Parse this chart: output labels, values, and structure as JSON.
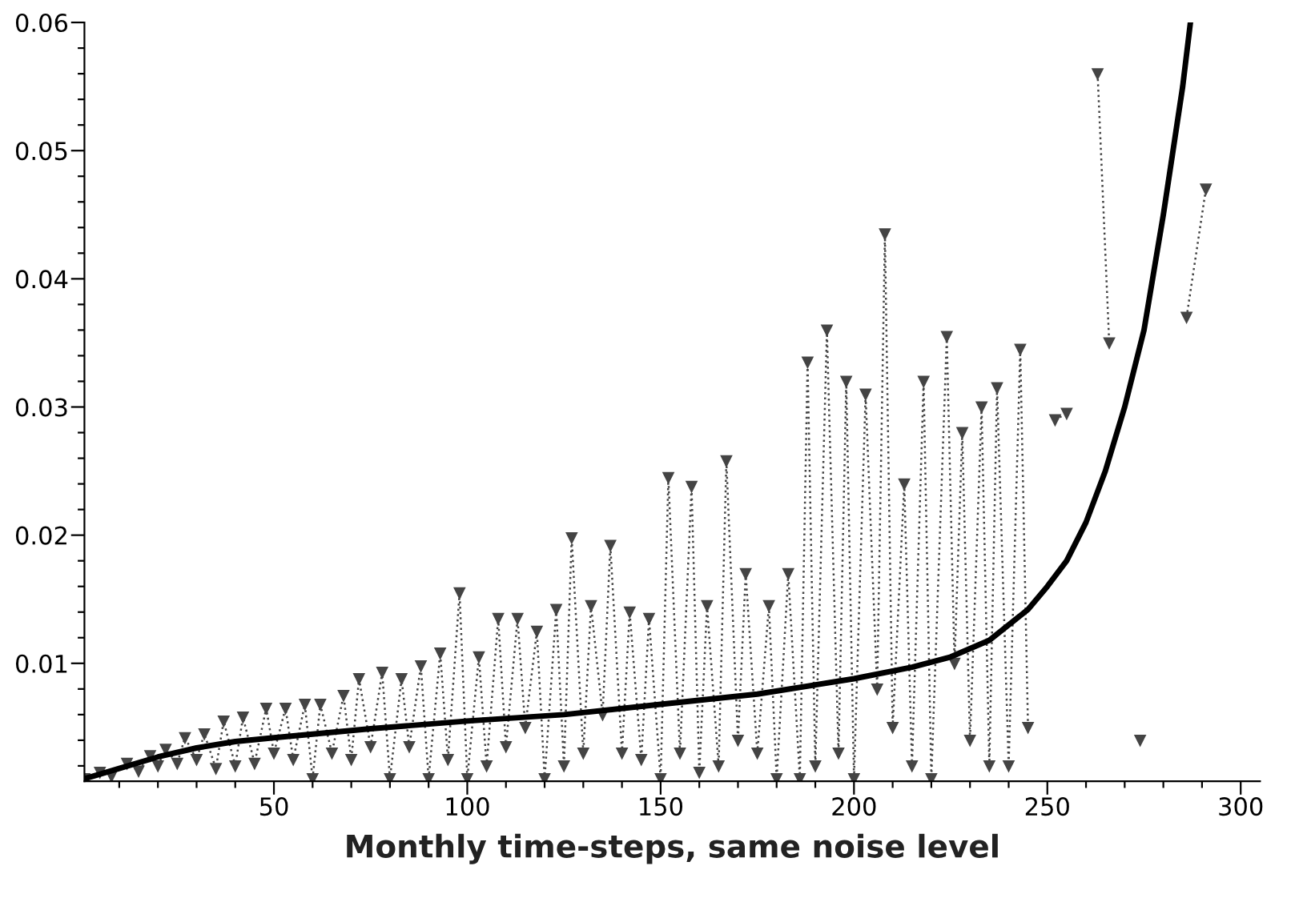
{
  "chart_data": {
    "type": "line",
    "xlabel": "Monthly time-steps, same noise level",
    "xlim": [
      1,
      305
    ],
    "ylim": [
      0.0008,
      0.06
    ],
    "xticks": [
      {
        "value": 10,
        "label": null
      },
      {
        "value": 20,
        "label": null
      },
      {
        "value": 30,
        "label": null
      },
      {
        "value": 40,
        "label": null
      },
      50,
      {
        "value": 60,
        "label": null
      },
      {
        "value": 70,
        "label": null
      },
      {
        "value": 80,
        "label": null
      },
      {
        "value": 90,
        "label": null
      },
      100,
      {
        "value": 110,
        "label": null
      },
      {
        "value": 120,
        "label": null
      },
      {
        "value": 130,
        "label": null
      },
      {
        "value": 140,
        "label": null
      },
      150,
      {
        "value": 160,
        "label": null
      },
      {
        "value": 170,
        "label": null
      },
      {
        "value": 180,
        "label": null
      },
      {
        "value": 190,
        "label": null
      },
      200,
      {
        "value": 210,
        "label": null
      },
      {
        "value": 220,
        "label": null
      },
      {
        "value": 230,
        "label": null
      },
      {
        "value": 240,
        "label": null
      },
      250,
      {
        "value": 260,
        "label": null
      },
      {
        "value": 270,
        "label": null
      },
      {
        "value": 280,
        "label": null
      },
      {
        "value": 290,
        "label": null
      },
      300
    ],
    "yticks": [
      {
        "value": 0.002,
        "label": null
      },
      {
        "value": 0.004,
        "label": null
      },
      {
        "value": 0.006,
        "label": null
      },
      {
        "value": 0.008,
        "label": null
      },
      0.01,
      {
        "value": 0.012,
        "label": null
      },
      {
        "value": 0.014,
        "label": null
      },
      {
        "value": 0.016,
        "label": null
      },
      {
        "value": 0.018,
        "label": null
      },
      0.02,
      {
        "value": 0.022,
        "label": null
      },
      {
        "value": 0.024,
        "label": null
      },
      {
        "value": 0.026,
        "label": null
      },
      {
        "value": 0.028,
        "label": null
      },
      0.03,
      {
        "value": 0.032,
        "label": null
      },
      {
        "value": 0.034,
        "label": null
      },
      {
        "value": 0.036,
        "label": null
      },
      {
        "value": 0.038,
        "label": null
      },
      0.04,
      {
        "value": 0.042,
        "label": null
      },
      {
        "value": 0.044,
        "label": null
      },
      {
        "value": 0.046,
        "label": null
      },
      {
        "value": 0.048,
        "label": null
      },
      0.05,
      {
        "value": 0.052,
        "label": null
      },
      {
        "value": 0.054,
        "label": null
      },
      {
        "value": 0.056,
        "label": null
      },
      {
        "value": 0.058,
        "label": null
      },
      0.06
    ],
    "grid": false,
    "series": [
      {
        "color": "#444444",
        "marker": "triangle",
        "line_style": "dotted",
        "x": [
          1,
          5,
          8,
          12,
          15,
          18,
          20,
          22,
          25,
          27,
          30,
          32,
          35,
          37,
          40,
          42,
          45,
          48,
          50,
          53,
          55,
          58,
          60,
          62,
          65,
          68,
          70,
          72,
          75,
          78,
          80,
          83,
          85,
          88,
          90,
          93,
          95,
          98,
          100,
          103,
          105,
          108,
          110,
          113,
          115,
          118,
          120,
          123,
          125,
          127,
          130,
          132,
          135,
          137,
          140,
          142,
          145,
          147,
          150,
          152,
          155,
          158,
          160,
          162,
          165,
          167,
          170,
          172,
          175,
          178,
          180,
          183,
          186,
          188,
          190,
          193,
          196,
          198,
          200,
          203,
          206,
          208,
          210,
          213,
          215,
          218,
          220,
          224,
          226,
          228,
          230,
          233,
          235,
          237,
          240,
          243,
          245,
          248,
          252,
          255,
          259,
          263,
          266,
          270,
          274,
          280,
          286,
          291
        ],
        "values": [
          0.001,
          0.0015,
          0.0012,
          0.0022,
          0.0016,
          0.0028,
          0.002,
          0.0033,
          0.0022,
          0.0042,
          0.0025,
          0.0045,
          0.0018,
          0.0055,
          0.002,
          0.0058,
          0.0022,
          0.0065,
          0.003,
          0.0065,
          0.0025,
          0.0068,
          0.001,
          0.0068,
          0.003,
          0.0075,
          0.0025,
          0.0088,
          0.0035,
          0.0093,
          0.001,
          0.0088,
          0.0035,
          0.0098,
          0.001,
          0.0108,
          0.0025,
          0.0155,
          0.001,
          0.0105,
          0.002,
          0.0135,
          0.0035,
          0.0135,
          0.005,
          0.0125,
          0.001,
          0.0142,
          0.002,
          0.0198,
          0.003,
          0.0145,
          0.006,
          0.0192,
          0.003,
          0.014,
          0.0025,
          0.0135,
          0.001,
          0.0245,
          0.003,
          0.0238,
          0.0015,
          0.0145,
          0.002,
          0.0258,
          0.004,
          0.017,
          0.003,
          0.0145,
          0.001,
          0.017,
          0.001,
          0.0335,
          0.002,
          0.036,
          0.003,
          0.032,
          0.001,
          0.031,
          0.008,
          0.0435,
          0.005,
          0.024,
          0.002,
          0.032,
          0.001,
          0.0355,
          0.01,
          0.028,
          0.004,
          0.03,
          0.002,
          0.0315,
          0.002,
          0.0345,
          0.005,
          null,
          0.029,
          0.0295,
          null,
          0.056,
          0.035,
          null,
          0.004,
          null,
          0.037,
          0.047
        ]
      },
      {
        "color": "#000000",
        "marker": "none",
        "line_style": "solid",
        "x": [
          1,
          10,
          20,
          30,
          40,
          50,
          75,
          100,
          125,
          150,
          175,
          200,
          215,
          225,
          235,
          240,
          245,
          250,
          255,
          260,
          265,
          270,
          275,
          280,
          283,
          285,
          287
        ],
        "values": [
          0.001,
          0.0018,
          0.0027,
          0.0034,
          0.0039,
          0.0042,
          0.0049,
          0.0055,
          0.006,
          0.0068,
          0.0076,
          0.0088,
          0.0097,
          0.0105,
          0.0118,
          0.013,
          0.0142,
          0.016,
          0.018,
          0.021,
          0.025,
          0.03,
          0.036,
          0.045,
          0.051,
          0.055,
          0.06
        ]
      }
    ]
  }
}
